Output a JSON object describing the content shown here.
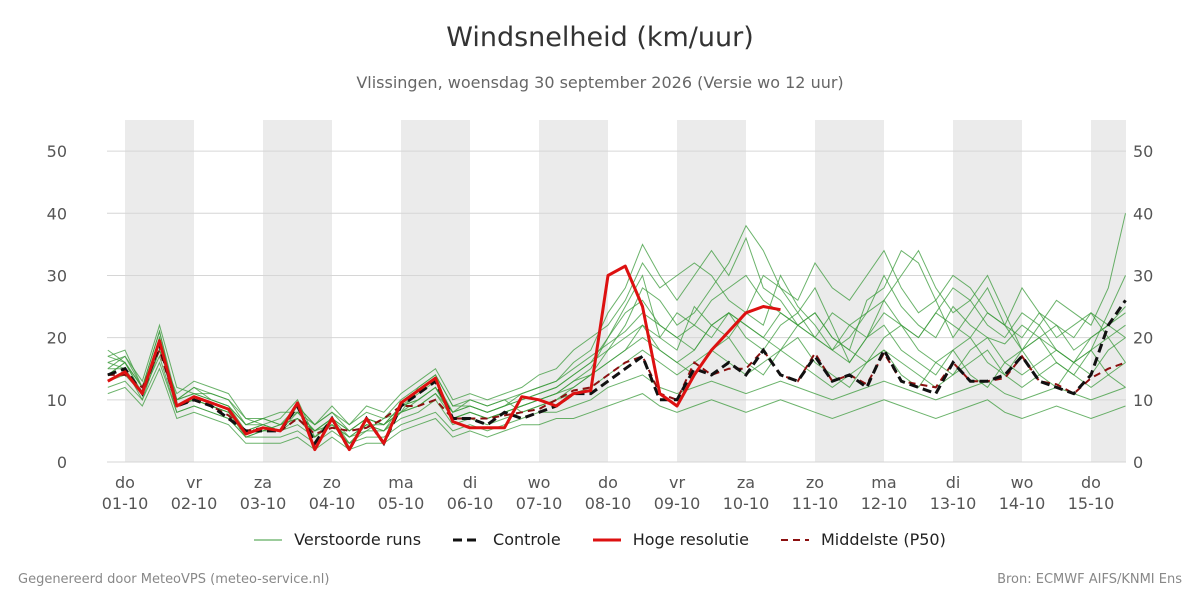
{
  "title": "Windsnelheid (km/uur)",
  "subtitle": "Vlissingen, woensdag 30 september 2026 (Versie wo 12 uur)",
  "footer_left": "Gegenereerd door MeteoVPS (meteo-service.nl)",
  "footer_right": "Bron: ECMWF AIFS/KNMI Ens",
  "colors": {
    "ensemble": "#3a9a3a",
    "control": "#111111",
    "high_res": "#dd1111",
    "median": "#8b1010",
    "weekend_shade": "#ebebeb",
    "grid": "#d6d6d6"
  },
  "legend": [
    {
      "label": "Verstoorde runs",
      "style": "ensemble"
    },
    {
      "label": "Controle",
      "style": "control"
    },
    {
      "label": "Hoge resolutie",
      "style": "high_res"
    },
    {
      "label": "Middelste (P50)",
      "style": "median"
    }
  ],
  "chart_data": {
    "type": "line",
    "title": "Windsnelheid (km/uur)",
    "ylim": [
      0,
      55
    ],
    "yticks": [
      0,
      10,
      20,
      30,
      40,
      50
    ],
    "xlim": [
      -0.25,
      14.5
    ],
    "grid": "horizontal",
    "legend_position": "bottom",
    "day_labels": [
      {
        "day": "do",
        "date": "01-10"
      },
      {
        "day": "vr",
        "date": "02-10"
      },
      {
        "day": "za",
        "date": "03-10"
      },
      {
        "day": "zo",
        "date": "04-10"
      },
      {
        "day": "ma",
        "date": "05-10"
      },
      {
        "day": "di",
        "date": "06-10"
      },
      {
        "day": "wo",
        "date": "07-10"
      },
      {
        "day": "do",
        "date": "08-10"
      },
      {
        "day": "vr",
        "date": "09-10"
      },
      {
        "day": "za",
        "date": "10-10"
      },
      {
        "day": "zo",
        "date": "11-10"
      },
      {
        "day": "ma",
        "date": "12-10"
      },
      {
        "day": "di",
        "date": "13-10"
      },
      {
        "day": "wo",
        "date": "14-10"
      },
      {
        "day": "do",
        "date": "15-10"
      }
    ],
    "shaded_days": [
      0,
      2,
      4,
      6,
      8,
      10,
      12,
      14
    ],
    "series": [
      {
        "name": "Controle",
        "x": [
          -0.25,
          0,
          0.25,
          0.5,
          0.75,
          1,
          1.25,
          1.5,
          1.75,
          2,
          2.25,
          2.5,
          2.75,
          3,
          3.25,
          3.5,
          3.75,
          4,
          4.25,
          4.5,
          4.75,
          5,
          5.25,
          5.5,
          5.75,
          6,
          6.25,
          6.5,
          6.75,
          7,
          7.25,
          7.5,
          7.75,
          8,
          8.25,
          8.5,
          8.75,
          9,
          9.25,
          9.5,
          9.75,
          10,
          10.25,
          10.5,
          10.75,
          11,
          11.25,
          11.5,
          11.75,
          12,
          12.25,
          12.5,
          12.75,
          13,
          13.25,
          13.5,
          13.75,
          14,
          14.25,
          14.5
        ],
        "values": [
          14,
          15,
          11,
          19,
          9,
          10,
          9,
          7,
          5,
          5,
          5,
          9,
          3,
          7,
          2,
          7,
          3,
          9,
          11,
          13,
          7,
          7,
          6,
          8,
          7,
          8,
          9,
          11,
          11,
          13,
          15,
          17,
          10,
          10,
          15,
          14,
          16,
          14,
          18,
          14,
          13,
          17,
          13,
          14,
          12,
          18,
          13,
          12,
          11,
          16,
          13,
          13,
          14,
          17,
          13,
          12,
          11,
          14,
          22,
          26
        ]
      },
      {
        "name": "Hoge resolutie",
        "x": [
          -0.25,
          0,
          0.25,
          0.5,
          0.75,
          1,
          1.25,
          1.5,
          1.75,
          2,
          2.25,
          2.5,
          2.75,
          3,
          3.25,
          3.5,
          3.75,
          4,
          4.25,
          4.5,
          4.75,
          5,
          5.25,
          5.5,
          5.75,
          6,
          6.25,
          6.5,
          6.75,
          7,
          7.25,
          7.5,
          7.75,
          8,
          8.25,
          8.5,
          8.75,
          9,
          9.25,
          9.5
        ],
        "values": [
          13,
          14.5,
          11,
          19.5,
          9,
          10.5,
          9.5,
          8.5,
          4.5,
          5.5,
          5,
          9.5,
          2,
          7,
          2,
          7,
          3,
          9.5,
          11.5,
          13.5,
          6.5,
          5.5,
          5.5,
          5.5,
          10.5,
          10,
          9,
          11,
          11.5,
          30,
          31.5,
          25,
          11,
          9,
          14,
          18,
          21,
          24,
          25,
          24.5
        ]
      },
      {
        "name": "Middelste (P50)",
        "x": [
          -0.25,
          0,
          0.25,
          0.5,
          0.75,
          1,
          1.25,
          1.5,
          1.75,
          2,
          2.25,
          2.5,
          2.75,
          3,
          3.25,
          3.5,
          3.75,
          4,
          4.25,
          4.5,
          4.75,
          5,
          5.25,
          5.5,
          5.75,
          6,
          6.25,
          6.5,
          6.75,
          7,
          7.25,
          7.5,
          7.75,
          8,
          8.25,
          8.5,
          8.75,
          9,
          9.25,
          9.5,
          9.75,
          10,
          10.25,
          10.5,
          10.75,
          11,
          11.25,
          11.5,
          11.75,
          12,
          12.25,
          12.5,
          12.75,
          13,
          13.25,
          13.5,
          13.75,
          14,
          14.25,
          14.5
        ],
        "values": [
          14,
          14,
          12,
          18,
          9,
          10,
          9,
          7.5,
          5,
          5.5,
          5,
          7,
          4.5,
          5.5,
          5,
          5.5,
          7,
          9,
          9,
          10,
          7,
          7,
          7,
          7.5,
          8,
          8.5,
          10,
          11.5,
          12,
          14,
          16,
          17,
          11,
          10,
          16,
          14,
          15,
          15,
          18,
          14,
          13,
          17.5,
          13,
          14,
          12.5,
          17.5,
          13,
          12.5,
          12,
          16,
          13,
          13,
          13.5,
          17,
          13,
          12.5,
          11,
          13.5,
          15,
          16
        ]
      },
      {
        "name": "Verstoorde runs",
        "x": [
          -0.25,
          0,
          0.25,
          0.5,
          0.75,
          1,
          1.25,
          1.5,
          1.75,
          2,
          2.25,
          2.5,
          2.75,
          3,
          3.25,
          3.5,
          3.75,
          4,
          4.25,
          4.5,
          4.75,
          5,
          5.25,
          5.5,
          5.75,
          6,
          6.25,
          6.5,
          6.75,
          7,
          7.25,
          7.5,
          7.75,
          8,
          8.25,
          8.5,
          8.75,
          9,
          9.25,
          9.5,
          9.75,
          10,
          10.25,
          10.5,
          10.75,
          11,
          11.25,
          11.5,
          11.75,
          12,
          12.25,
          12.5,
          12.75,
          13,
          13.25,
          13.5,
          13.75,
          14,
          14.25,
          14.5
        ],
        "members": [
          [
            18,
            16,
            11,
            20,
            10,
            12,
            10,
            9,
            5,
            6,
            7,
            10,
            4,
            7,
            3,
            6,
            5,
            9,
            10,
            12,
            7,
            8,
            7,
            8,
            9,
            10,
            11,
            13,
            15,
            20,
            25,
            30,
            20,
            18,
            25,
            22,
            20,
            24,
            22,
            30,
            25,
            22,
            18,
            20,
            24,
            30,
            25,
            22,
            20,
            25,
            22,
            20,
            19,
            22,
            20,
            18,
            16,
            18,
            24,
            30
          ],
          [
            16,
            17,
            13,
            22,
            12,
            11,
            11,
            10,
            6,
            7,
            8,
            8,
            6,
            8,
            5,
            7,
            6,
            8,
            12,
            14,
            9,
            9,
            8,
            9,
            11,
            12,
            13,
            16,
            18,
            24,
            28,
            35,
            30,
            26,
            30,
            34,
            30,
            36,
            28,
            26,
            22,
            24,
            20,
            18,
            26,
            28,
            34,
            32,
            26,
            20,
            24,
            28,
            22,
            18,
            20,
            22,
            18,
            20,
            22,
            25
          ],
          [
            17,
            18,
            12,
            21,
            9,
            10,
            9,
            8,
            4,
            5,
            6,
            7,
            5,
            6,
            4,
            5,
            7,
            8,
            9,
            11,
            8,
            10,
            9,
            10,
            8,
            9,
            10,
            12,
            14,
            18,
            22,
            28,
            26,
            22,
            24,
            28,
            32,
            38,
            34,
            28,
            24,
            28,
            22,
            16,
            20,
            26,
            30,
            34,
            28,
            24,
            26,
            30,
            24,
            18,
            22,
            26,
            24,
            22,
            28,
            40
          ],
          [
            15,
            15,
            10,
            18,
            11,
            13,
            12,
            11,
            7,
            6,
            5,
            9,
            6,
            9,
            6,
            9,
            8,
            11,
            13,
            15,
            10,
            11,
            10,
            11,
            12,
            14,
            15,
            18,
            20,
            22,
            26,
            32,
            28,
            30,
            32,
            30,
            26,
            24,
            30,
            28,
            26,
            32,
            28,
            26,
            30,
            34,
            28,
            24,
            26,
            30,
            28,
            24,
            22,
            28,
            24,
            20,
            22,
            24,
            20,
            22
          ],
          [
            14,
            16,
            12,
            19,
            10,
            11,
            10,
            9,
            6,
            7,
            6,
            8,
            5,
            7,
            5,
            7,
            6,
            9,
            11,
            13,
            8,
            9,
            8,
            9,
            10,
            11,
            12,
            14,
            16,
            20,
            24,
            26,
            22,
            20,
            22,
            26,
            28,
            30,
            26,
            24,
            22,
            20,
            18,
            22,
            24,
            26,
            22,
            20,
            24,
            28,
            26,
            22,
            20,
            24,
            22,
            18,
            16,
            20,
            22,
            24
          ],
          [
            13,
            14,
            11,
            17,
            8,
            9,
            8,
            7,
            4,
            5,
            5,
            6,
            4,
            6,
            3,
            5,
            5,
            7,
            8,
            10,
            6,
            7,
            6,
            7,
            8,
            9,
            10,
            11,
            12,
            14,
            16,
            18,
            16,
            14,
            16,
            18,
            16,
            14,
            16,
            18,
            16,
            14,
            12,
            14,
            16,
            18,
            16,
            14,
            12,
            14,
            16,
            18,
            14,
            12,
            14,
            16,
            14,
            12,
            14,
            16
          ],
          [
            12,
            13,
            10,
            16,
            8,
            9,
            8,
            7,
            4,
            4,
            4,
            5,
            3,
            5,
            3,
            4,
            4,
            6,
            7,
            8,
            5,
            6,
            5,
            6,
            7,
            8,
            8,
            9,
            10,
            12,
            13,
            14,
            12,
            11,
            12,
            13,
            12,
            11,
            12,
            13,
            12,
            11,
            10,
            11,
            12,
            13,
            12,
            11,
            10,
            11,
            12,
            13,
            11,
            10,
            11,
            12,
            11,
            10,
            11,
            12
          ],
          [
            11,
            12,
            9,
            15,
            7,
            8,
            7,
            6,
            3,
            3,
            3,
            4,
            2,
            4,
            2,
            3,
            3,
            5,
            6,
            7,
            4,
            5,
            4,
            5,
            6,
            6,
            7,
            7,
            8,
            9,
            10,
            11,
            9,
            8,
            9,
            10,
            9,
            8,
            9,
            10,
            9,
            8,
            7,
            8,
            9,
            10,
            9,
            8,
            7,
            8,
            9,
            10,
            8,
            7,
            8,
            9,
            8,
            7,
            8,
            9
          ],
          [
            15,
            17,
            12,
            19,
            9,
            10,
            9,
            8,
            5,
            5,
            6,
            7,
            5,
            7,
            4,
            6,
            5,
            8,
            9,
            11,
            7,
            8,
            7,
            8,
            9,
            10,
            11,
            13,
            14,
            16,
            18,
            22,
            20,
            24,
            22,
            20,
            24,
            22,
            20,
            24,
            22,
            20,
            24,
            22,
            20,
            24,
            22,
            20,
            24,
            22,
            20,
            24,
            22,
            20,
            24,
            22,
            20,
            24,
            22,
            20
          ],
          [
            16,
            15,
            11,
            18,
            10,
            11,
            10,
            9,
            6,
            6,
            5,
            7,
            4,
            6,
            4,
            6,
            6,
            9,
            10,
            12,
            8,
            9,
            8,
            9,
            10,
            11,
            12,
            14,
            16,
            18,
            20,
            22,
            18,
            16,
            18,
            22,
            24,
            22,
            20,
            18,
            22,
            24,
            20,
            18,
            16,
            20,
            22,
            18,
            16,
            14,
            18,
            20,
            16,
            14,
            16,
            18,
            16,
            14,
            18,
            20
          ],
          [
            14,
            16,
            11,
            20,
            9,
            10,
            9,
            8,
            5,
            6,
            5,
            8,
            5,
            7,
            5,
            7,
            6,
            8,
            10,
            12,
            7,
            8,
            7,
            8,
            9,
            10,
            11,
            12,
            14,
            16,
            18,
            20,
            18,
            16,
            14,
            18,
            20,
            16,
            14,
            18,
            20,
            16,
            14,
            12,
            16,
            18,
            14,
            12,
            16,
            18,
            14,
            12,
            16,
            18,
            14,
            12,
            16,
            18,
            14,
            12
          ],
          [
            17,
            16,
            12,
            21,
            10,
            12,
            11,
            10,
            7,
            7,
            6,
            9,
            6,
            8,
            6,
            8,
            7,
            10,
            12,
            14,
            9,
            10,
            9,
            10,
            11,
            12,
            13,
            15,
            17,
            19,
            21,
            24,
            22,
            20,
            18,
            22,
            24,
            20,
            18,
            22,
            24,
            20,
            18,
            16,
            20,
            22,
            18,
            16,
            14,
            18,
            20,
            16,
            14,
            18,
            20,
            16,
            14,
            18,
            20,
            16
          ]
        ]
      }
    ]
  }
}
